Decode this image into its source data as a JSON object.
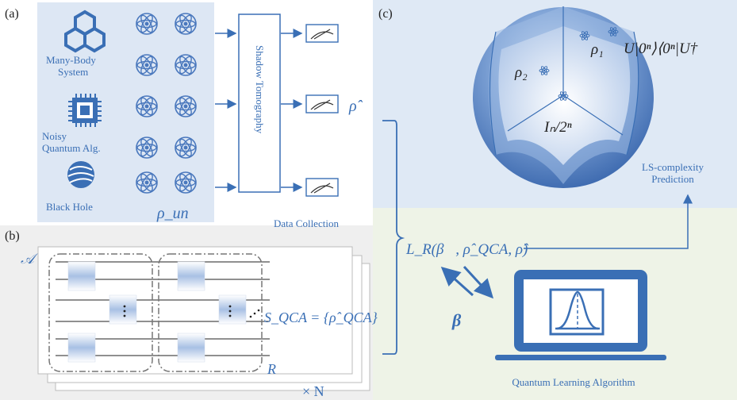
{
  "panel_a": {
    "label": "(a)",
    "sources": [
      "Many-Body",
      "System",
      "Noisy",
      "Quantum Alg.",
      "Black Hole"
    ],
    "state_label": "ρ_un",
    "tomography": "Shadow Tomography",
    "data_collection": "Data Collection",
    "estimate": "ρ̂"
  },
  "panel_b": {
    "label": "(b)",
    "circuit_symbol": "𝒜",
    "r_label": "R",
    "copies": "× N",
    "set_label": "S_QCA = {ρ̂_QCA}"
  },
  "panel_c": {
    "label": "(c)",
    "rho1": "ρ₁",
    "rho2": "ρ₂",
    "state_formula": "U|0ⁿ⟩⟨0ⁿ|U†",
    "mixed_state": "Iₙ/2ⁿ",
    "prediction_line1": "LS-complexity",
    "prediction_line2": "Prediction"
  },
  "learning": {
    "loss": "L_R(β⃗, ρ̂_QCA, ρ̂)",
    "beta": "β⃗",
    "algorithm": "Quantum Learning Algorithm"
  },
  "colors": {
    "accent": "#3a6fb5",
    "panel_a_bg": "#dde7f4",
    "panel_b_bg": "#efefef",
    "panel_c_bg": "#dfe9f5",
    "learning_bg": "#eef3e7"
  }
}
